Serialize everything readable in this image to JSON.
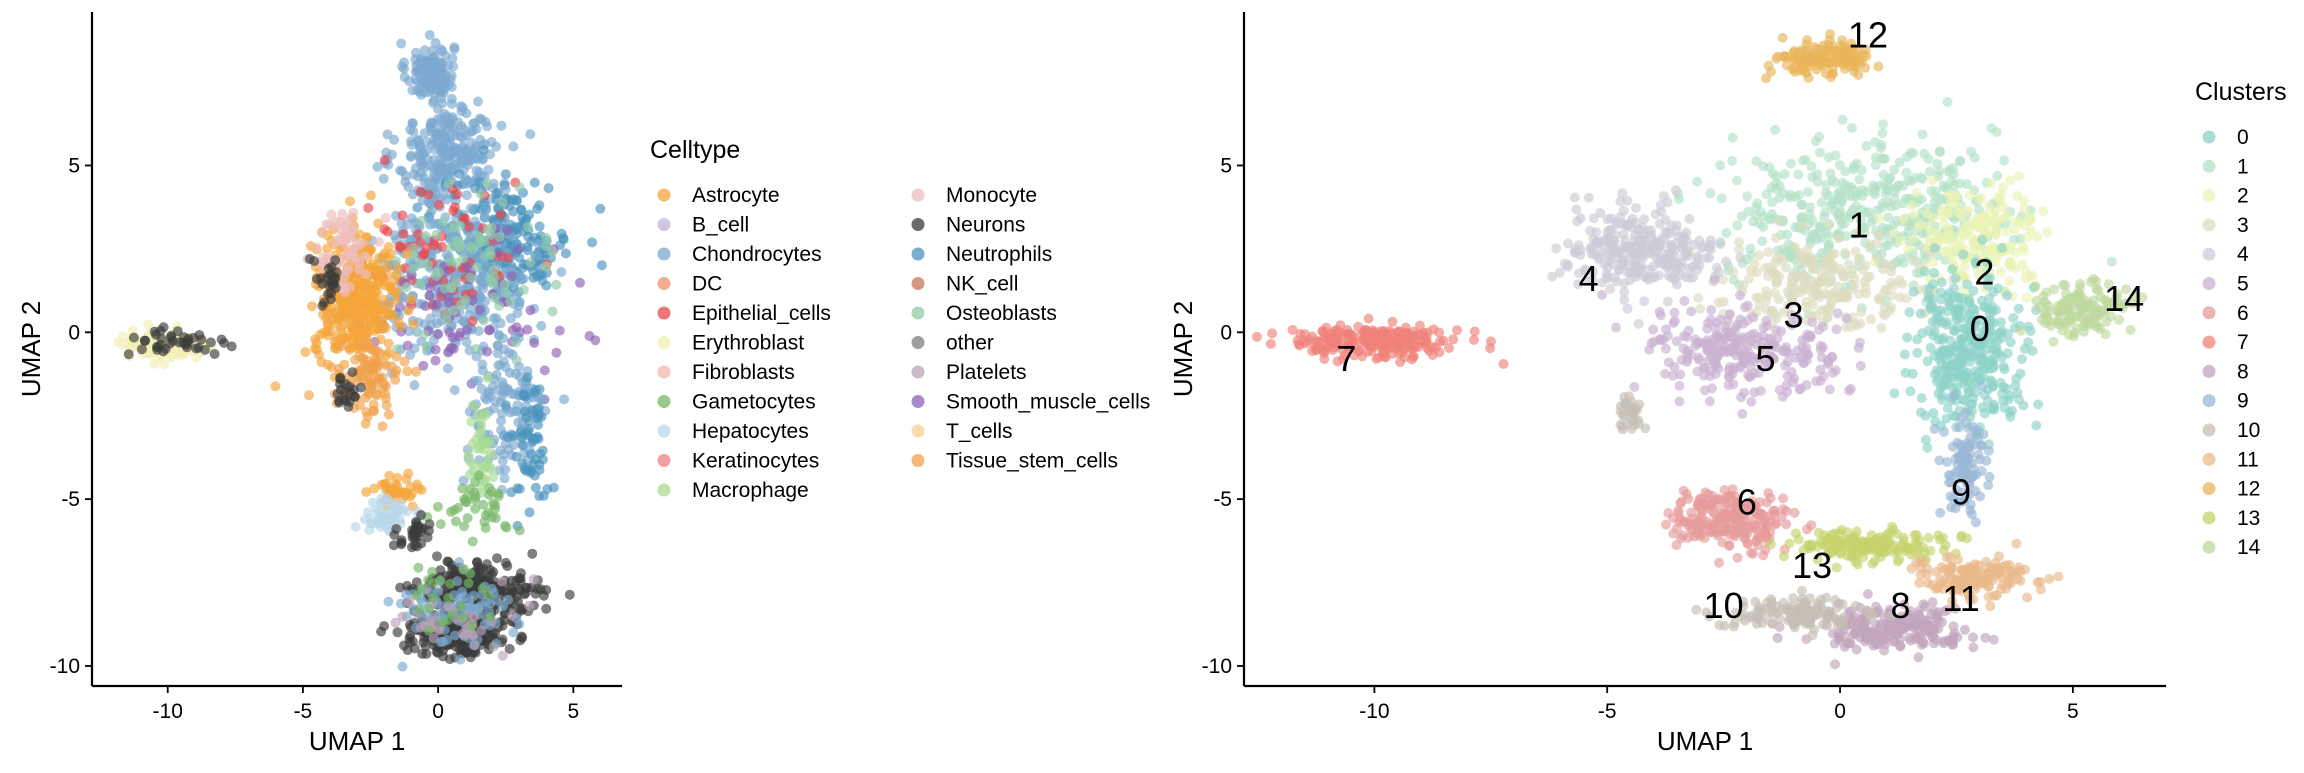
{
  "chart_data": [
    {
      "type": "scatter",
      "xlabel": "UMAP 1",
      "ylabel": "UMAP 2",
      "xlim": [
        -12.8,
        6.8
      ],
      "ylim": [
        -10.6,
        9.6
      ],
      "xticks": [
        -10,
        -5,
        0,
        5
      ],
      "yticks": [
        -10,
        -5,
        0,
        5
      ],
      "grid": false,
      "legend_position": "right",
      "legend_title": "Celltype",
      "legend_columns": 2,
      "series": [
        {
          "name": "Astrocyte",
          "color": "#F4A43A"
        },
        {
          "name": "B_cell",
          "color": "#C2B3D9"
        },
        {
          "name": "Chondrocytes",
          "color": "#7DA9CF"
        },
        {
          "name": "DC",
          "color": "#F2916B"
        },
        {
          "name": "Epithelial_cells",
          "color": "#E8474B"
        },
        {
          "name": "Erythroblast",
          "color": "#F1F0B7"
        },
        {
          "name": "Fibroblasts",
          "color": "#F3B7AE"
        },
        {
          "name": "Gametocytes",
          "color": "#74B765"
        },
        {
          "name": "Hepatocytes",
          "color": "#B9D7EA"
        },
        {
          "name": "Keratinocytes",
          "color": "#EB8083"
        },
        {
          "name": "Macrophage",
          "color": "#A9DB93"
        },
        {
          "name": "Monocyte",
          "color": "#EDBDBE"
        },
        {
          "name": "Neurons",
          "color": "#3A3A3A"
        },
        {
          "name": "Neutrophils",
          "color": "#4A93BD"
        },
        {
          "name": "NK_cell",
          "color": "#C8765B"
        },
        {
          "name": "Osteoblasts",
          "color": "#90CBA7"
        },
        {
          "name": "other",
          "color": "#7F7F7F"
        },
        {
          "name": "Platelets",
          "color": "#B8A3B8"
        },
        {
          "name": "Smooth_muscle_cells",
          "color": "#8D63B5"
        },
        {
          "name": "T_cells",
          "color": "#F8CF8F"
        },
        {
          "name": "Tissue_stem_cells",
          "color": "#F0A14C"
        }
      ],
      "regions": [
        {
          "series": "Chondrocytes",
          "cx": -0.3,
          "cy": 7.8,
          "rx": 0.8,
          "ry": 0.8,
          "n": 120
        },
        {
          "series": "Chondrocytes",
          "cx": 0.4,
          "cy": 5.3,
          "rx": 1.7,
          "ry": 1.5,
          "n": 260
        },
        {
          "series": "Neutrophils",
          "cx": 2.5,
          "cy": 2.8,
          "rx": 2.2,
          "ry": 1.6,
          "n": 220
        },
        {
          "series": "Chondrocytes",
          "cx": 0.5,
          "cy": 1.5,
          "rx": 2.6,
          "ry": 2.0,
          "n": 300
        },
        {
          "series": "Epithelial_cells",
          "cx": 0.0,
          "cy": 2.2,
          "rx": 2.8,
          "ry": 2.2,
          "n": 70
        },
        {
          "series": "Smooth_muscle_cells",
          "cx": 1.0,
          "cy": 0.5,
          "rx": 3.0,
          "ry": 2.0,
          "n": 70
        },
        {
          "series": "Osteoblasts",
          "cx": 1.5,
          "cy": 2.0,
          "rx": 2.5,
          "ry": 2.0,
          "n": 80
        },
        {
          "series": "Astrocyte",
          "cx": -3.0,
          "cy": 1.0,
          "rx": 1.4,
          "ry": 1.7,
          "n": 380
        },
        {
          "series": "Tissue_stem_cells",
          "cx": -2.5,
          "cy": -1.4,
          "rx": 1.0,
          "ry": 1.0,
          "n": 90
        },
        {
          "series": "Monocyte",
          "cx": -3.5,
          "cy": 2.5,
          "rx": 0.9,
          "ry": 1.2,
          "n": 60
        },
        {
          "series": "Neurons",
          "cx": -4.0,
          "cy": 1.5,
          "rx": 0.5,
          "ry": 0.8,
          "n": 25
        },
        {
          "series": "Neurons",
          "cx": -3.5,
          "cy": -1.8,
          "rx": 0.5,
          "ry": 0.6,
          "n": 20
        },
        {
          "series": "Erythroblast",
          "cx": -10.2,
          "cy": -0.4,
          "rx": 1.6,
          "ry": 0.45,
          "n": 110
        },
        {
          "series": "Neurons",
          "cx": -9.7,
          "cy": -0.3,
          "rx": 1.6,
          "ry": 0.4,
          "n": 40
        },
        {
          "series": "Chondrocytes",
          "cx": 2.5,
          "cy": -2.5,
          "rx": 1.5,
          "ry": 2.0,
          "n": 120
        },
        {
          "series": "Neutrophils",
          "cx": 3.4,
          "cy": -3.5,
          "rx": 0.6,
          "ry": 1.8,
          "n": 60
        },
        {
          "series": "Macrophage",
          "cx": 1.5,
          "cy": -3.5,
          "rx": 0.6,
          "ry": 1.5,
          "n": 40
        },
        {
          "series": "Gametocytes",
          "cx": 1.6,
          "cy": -5.2,
          "rx": 1.2,
          "ry": 0.6,
          "n": 40
        },
        {
          "series": "Astrocyte",
          "cx": -1.5,
          "cy": -4.8,
          "rx": 0.8,
          "ry": 0.5,
          "n": 40
        },
        {
          "series": "Hepatocytes",
          "cx": -2.0,
          "cy": -5.5,
          "rx": 1.0,
          "ry": 0.5,
          "n": 50
        },
        {
          "series": "Neurons",
          "cx": -0.8,
          "cy": -6.1,
          "rx": 0.6,
          "ry": 0.4,
          "n": 30
        },
        {
          "series": "Neurons",
          "cx": 1.4,
          "cy": -7.7,
          "rx": 2.0,
          "ry": 0.7,
          "n": 230
        },
        {
          "series": "Neurons",
          "cx": 0.8,
          "cy": -9.0,
          "rx": 1.6,
          "ry": 0.6,
          "n": 260
        },
        {
          "series": "Chondrocytes",
          "cx": 0.6,
          "cy": -8.4,
          "rx": 2.1,
          "ry": 1.0,
          "n": 80
        },
        {
          "series": "Platelets",
          "cx": 1.0,
          "cy": -8.5,
          "rx": 2.0,
          "ry": 1.0,
          "n": 40
        },
        {
          "series": "Gametocytes",
          "cx": 0.5,
          "cy": -8.0,
          "rx": 2.0,
          "ry": 1.0,
          "n": 25
        }
      ]
    },
    {
      "type": "scatter",
      "xlabel": "UMAP 1",
      "ylabel": "UMAP 2",
      "xlim": [
        -12.8,
        7.0
      ],
      "ylim": [
        -10.6,
        9.6
      ],
      "xticks": [
        -10,
        -5,
        0,
        5
      ],
      "yticks": [
        -10,
        -5,
        0,
        5
      ],
      "grid": false,
      "legend_position": "right",
      "legend_title": "Clusters",
      "legend_columns": 1,
      "series": [
        {
          "name": "0",
          "color": "#8DD3C7",
          "label_x": 3.0,
          "label_y": 0.1
        },
        {
          "name": "1",
          "color": "#B3E2C7",
          "label_x": 0.4,
          "label_y": 3.2
        },
        {
          "name": "2",
          "color": "#EAF3B4",
          "label_x": 3.1,
          "label_y": 1.8
        },
        {
          "name": "3",
          "color": "#DDDBC0",
          "label_x": -1.0,
          "label_y": 0.5
        },
        {
          "name": "4",
          "color": "#CDCBD6",
          "label_x": -5.4,
          "label_y": 1.6
        },
        {
          "name": "5",
          "color": "#C9B0D1",
          "label_x": -1.6,
          "label_y": -0.8
        },
        {
          "name": "6",
          "color": "#E79B9B",
          "label_x": -2.0,
          "label_y": -5.1
        },
        {
          "name": "7",
          "color": "#EF8179",
          "label_x": -10.6,
          "label_y": -0.8
        },
        {
          "name": "8",
          "color": "#C2A5BC",
          "label_x": 1.3,
          "label_y": -8.2
        },
        {
          "name": "9",
          "color": "#9AB7D6",
          "label_x": 2.6,
          "label_y": -4.8
        },
        {
          "name": "10",
          "color": "#C5BFB3",
          "label_x": -2.5,
          "label_y": -8.2
        },
        {
          "name": "11",
          "color": "#EAB98A",
          "label_x": 2.6,
          "label_y": -8.0
        },
        {
          "name": "12",
          "color": "#E9B65A",
          "label_x": 0.6,
          "label_y": 8.9
        },
        {
          "name": "13",
          "color": "#C5D26B",
          "label_x": -0.6,
          "label_y": -7.0
        },
        {
          "name": "14",
          "color": "#BFD89E",
          "label_x": 6.1,
          "label_y": 1.0
        }
      ],
      "regions": [
        {
          "series": "1",
          "cx": 0.5,
          "cy": 3.6,
          "rx": 2.6,
          "ry": 2.0,
          "n": 420
        },
        {
          "series": "2",
          "cx": 3.0,
          "cy": 2.8,
          "rx": 1.4,
          "ry": 1.3,
          "n": 200
        },
        {
          "series": "3",
          "cx": -0.5,
          "cy": 1.5,
          "rx": 2.0,
          "ry": 1.2,
          "n": 220
        },
        {
          "series": "0",
          "cx": 2.8,
          "cy": -0.5,
          "rx": 1.1,
          "ry": 2.0,
          "n": 350
        },
        {
          "series": "4",
          "cx": -4.6,
          "cy": 2.5,
          "rx": 1.3,
          "ry": 1.2,
          "n": 200
        },
        {
          "series": "4",
          "cx": -3.5,
          "cy": 2.2,
          "rx": 0.8,
          "ry": 0.7,
          "n": 70
        },
        {
          "series": "5",
          "cx": -2.0,
          "cy": -0.5,
          "rx": 1.9,
          "ry": 1.2,
          "n": 260
        },
        {
          "series": "7",
          "cx": -10.0,
          "cy": -0.3,
          "rx": 1.6,
          "ry": 0.45,
          "n": 220
        },
        {
          "series": "12",
          "cx": -0.3,
          "cy": 8.2,
          "rx": 0.9,
          "ry": 0.45,
          "n": 150
        },
        {
          "series": "14",
          "cx": 5.2,
          "cy": 0.7,
          "rx": 0.9,
          "ry": 0.7,
          "n": 130
        },
        {
          "series": "6",
          "cx": -2.4,
          "cy": -5.6,
          "rx": 1.1,
          "ry": 0.8,
          "n": 220
        },
        {
          "series": "9",
          "cx": 2.7,
          "cy": -4.0,
          "rx": 0.5,
          "ry": 1.4,
          "n": 100
        },
        {
          "series": "13",
          "cx": 0.6,
          "cy": -6.4,
          "rx": 1.5,
          "ry": 0.45,
          "n": 150
        },
        {
          "series": "11",
          "cx": 2.8,
          "cy": -7.4,
          "rx": 1.2,
          "ry": 0.55,
          "n": 140
        },
        {
          "series": "8",
          "cx": 1.0,
          "cy": -8.9,
          "rx": 1.6,
          "ry": 0.6,
          "n": 220
        },
        {
          "series": "10",
          "cx": -1.0,
          "cy": -8.4,
          "rx": 1.3,
          "ry": 0.5,
          "n": 110
        },
        {
          "series": "10",
          "cx": -4.5,
          "cy": -2.5,
          "rx": 0.35,
          "ry": 0.6,
          "n": 30
        }
      ]
    }
  ]
}
